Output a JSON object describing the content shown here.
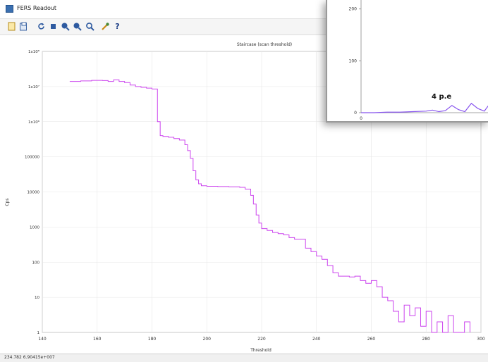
{
  "window": {
    "title": "FERS Readout"
  },
  "toolbar": {
    "items": [
      {
        "icon": "new-file-icon"
      },
      {
        "icon": "open-file-icon"
      },
      {
        "icon": "refresh-icon"
      },
      {
        "icon": "stop-icon"
      },
      {
        "icon": "zoom-in-icon"
      },
      {
        "icon": "zoom-out-icon"
      },
      {
        "icon": "zoom-fit-icon"
      },
      {
        "icon": "settings-tool-icon"
      },
      {
        "icon": "help-icon"
      }
    ]
  },
  "status": {
    "coords": "234.782  6.90415e+007"
  },
  "chart_data": [
    {
      "type": "line",
      "title": "Staircase (scan threshold)",
      "xlabel": "Threshold",
      "ylabel": "Cps",
      "xlim": [
        140,
        300
      ],
      "ylim": [
        1,
        100000000
      ],
      "yscale": "log",
      "grid": true,
      "color": "#cc44ee",
      "x_ticks": [
        "140",
        "160",
        "180",
        "200",
        "220",
        "240",
        "260",
        "280",
        "300"
      ],
      "y_ticks": [
        "1",
        "10",
        "100",
        "1000",
        "10000",
        "100000",
        "1x10⁶",
        "1x10⁷",
        "1x10⁸"
      ],
      "x": [
        150,
        154,
        158,
        162,
        164,
        166,
        168,
        170,
        172,
        174,
        176,
        178,
        180,
        182,
        183,
        184,
        186,
        188,
        190,
        192,
        193,
        194,
        195,
        196,
        197,
        198,
        200,
        204,
        208,
        212,
        214,
        216,
        217,
        218,
        219,
        220,
        222,
        224,
        226,
        228,
        230,
        232,
        236,
        238,
        240,
        242,
        244,
        246,
        248,
        252,
        254,
        256,
        258,
        260,
        262,
        264,
        266,
        268,
        270,
        272,
        274,
        276,
        278,
        280,
        282,
        284,
        286,
        288,
        290,
        294,
        296
      ],
      "y": [
        14000000,
        14500000,
        15000000,
        14800000,
        14000000,
        15500000,
        14000000,
        13000000,
        11000000,
        10000000,
        9500000,
        9000000,
        8500000,
        1000000,
        400000,
        380000,
        360000,
        330000,
        300000,
        220000,
        150000,
        90000,
        40000,
        22000,
        17000,
        15000,
        14500,
        14200,
        14000,
        13500,
        12000,
        8000,
        4500,
        2200,
        1300,
        900,
        800,
        700,
        650,
        600,
        500,
        450,
        250,
        200,
        150,
        120,
        80,
        50,
        40,
        38,
        40,
        30,
        25,
        30,
        20,
        10,
        8,
        4,
        2,
        6,
        3,
        5,
        1.5,
        4,
        1,
        2,
        1,
        3,
        1,
        2,
        1
      ]
    },
    {
      "type": "line",
      "y_ticks": [
        "0",
        "100",
        "200"
      ],
      "x_ticks": [
        "0"
      ],
      "annotation": "4 p.e",
      "color": "#8855ee",
      "x": [
        0,
        10,
        20,
        30,
        40,
        50,
        55,
        60,
        65,
        70,
        75,
        80,
        85,
        90,
        95,
        100
      ],
      "y": [
        0,
        0,
        1,
        1,
        2,
        3,
        5,
        2,
        4,
        14,
        6,
        2,
        18,
        8,
        3,
        20
      ]
    }
  ]
}
